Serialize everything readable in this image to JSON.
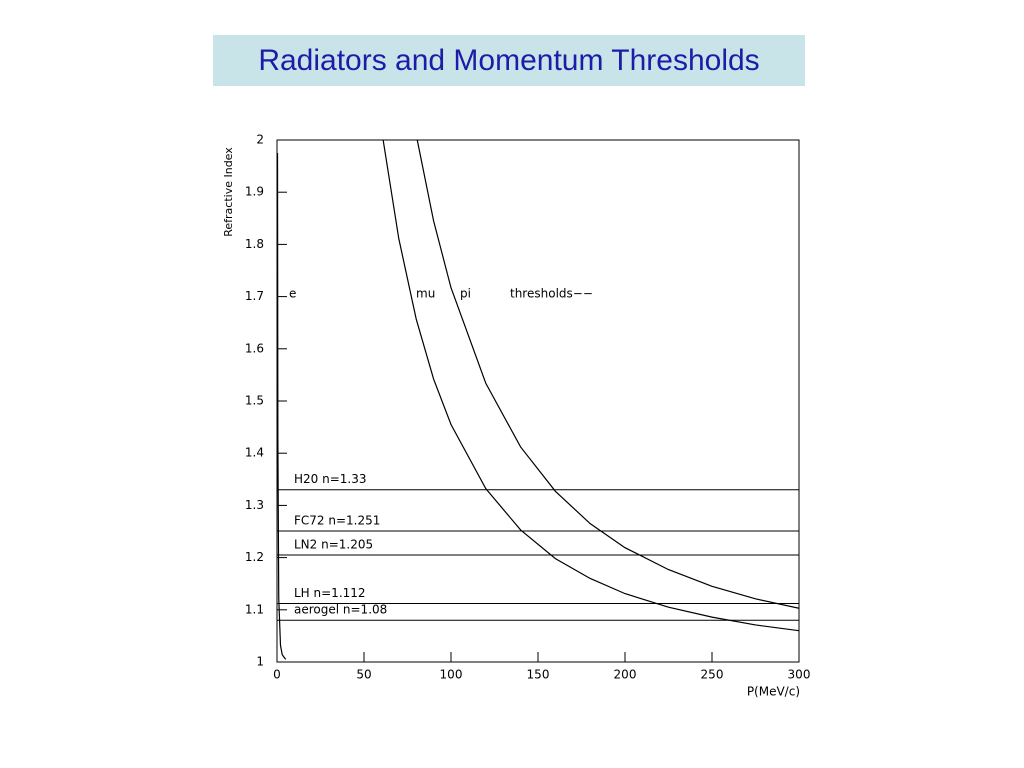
{
  "chart_data": {
    "type": "line",
    "title": "Radiators and Momentum Thresholds",
    "x_label": "P(MeV/c)",
    "y_label": "Refractive Index",
    "annotation": "thresholds−−",
    "xlim": [
      0,
      300
    ],
    "xticks": [
      0,
      50,
      100,
      150,
      200,
      250,
      300
    ],
    "ylim": [
      1,
      2
    ],
    "yticks": [
      1,
      1.1,
      1.2,
      1.3,
      1.4,
      1.5,
      1.6,
      1.7,
      1.8,
      1.9,
      2
    ],
    "color": "#000000",
    "series": [
      {
        "name": "e",
        "x": [
          0.3,
          0.5,
          1,
          2,
          3,
          5
        ],
        "values": [
          1.975,
          1.43,
          1.123,
          1.032,
          1.014,
          1.005
        ]
      },
      {
        "name": "mu",
        "x": [
          61,
          70,
          80,
          90,
          100,
          120,
          140,
          160,
          180,
          200,
          225,
          250,
          275,
          300
        ],
        "values": [
          2.0,
          1.811,
          1.657,
          1.542,
          1.455,
          1.332,
          1.253,
          1.198,
          1.16,
          1.131,
          1.105,
          1.086,
          1.071,
          1.06
        ]
      },
      {
        "name": "pi",
        "x": [
          80.6,
          90,
          100,
          120,
          140,
          160,
          180,
          200,
          225,
          250,
          275,
          300
        ],
        "values": [
          2.0,
          1.845,
          1.717,
          1.534,
          1.412,
          1.327,
          1.265,
          1.219,
          1.177,
          1.145,
          1.121,
          1.103
        ]
      }
    ],
    "radiators": [
      {
        "label": "H20 n=1.33",
        "value": 1.33
      },
      {
        "label": "FC72  n=1.251",
        "value": 1.251
      },
      {
        "label": "LN2 n=1.205",
        "value": 1.205
      },
      {
        "label": "LH n=1.112",
        "value": 1.112
      },
      {
        "label": "aerogel n=1.08",
        "value": 1.08
      }
    ]
  }
}
